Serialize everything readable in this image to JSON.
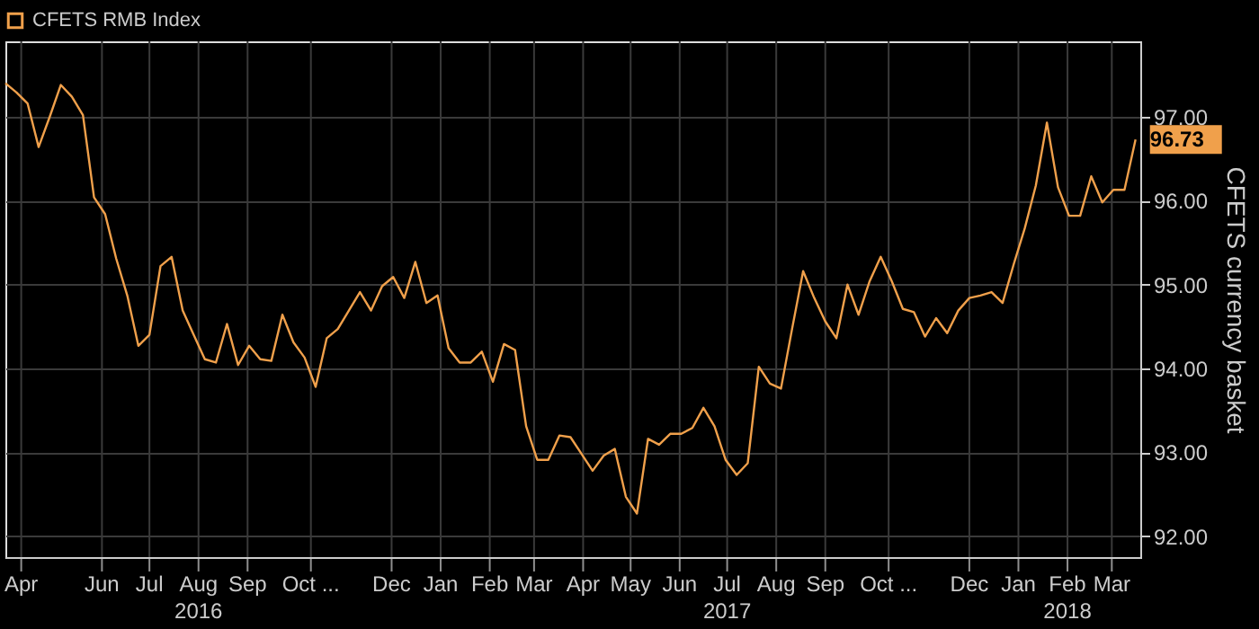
{
  "chart_data": {
    "type": "line",
    "ylabel": "CFETS currency basket",
    "x": [
      "2016-04-15",
      "2016-04-22",
      "2016-04-29",
      "2016-05-06",
      "2016-05-13",
      "2016-05-20",
      "2016-05-27",
      "2016-06-03",
      "2016-06-10",
      "2016-06-17",
      "2016-06-24",
      "2016-07-01",
      "2016-07-08",
      "2016-07-15",
      "2016-07-22",
      "2016-07-29",
      "2016-08-05",
      "2016-08-12",
      "2016-08-19",
      "2016-08-26",
      "2016-09-02",
      "2016-09-09",
      "2016-09-16",
      "2016-09-23",
      "2016-09-30",
      "2016-10-07",
      "2016-10-14",
      "2016-10-21",
      "2016-10-28",
      "2016-11-04",
      "2016-11-11",
      "2016-11-18",
      "2016-11-25",
      "2016-12-02",
      "2016-12-09",
      "2016-12-16",
      "2016-12-23",
      "2016-12-30",
      "2017-01-06",
      "2017-01-13",
      "2017-01-20",
      "2017-01-27",
      "2017-02-03",
      "2017-02-10",
      "2017-02-17",
      "2017-02-24",
      "2017-03-03",
      "2017-03-10",
      "2017-03-17",
      "2017-03-24",
      "2017-03-31",
      "2017-04-07",
      "2017-04-14",
      "2017-04-21",
      "2017-04-28",
      "2017-05-05",
      "2017-05-12",
      "2017-05-19",
      "2017-05-26",
      "2017-06-02",
      "2017-06-09",
      "2017-06-16",
      "2017-06-23",
      "2017-06-30",
      "2017-07-07",
      "2017-07-14",
      "2017-07-21",
      "2017-07-28",
      "2017-08-04",
      "2017-08-11",
      "2017-08-18",
      "2017-08-25",
      "2017-09-01",
      "2017-09-08",
      "2017-09-15",
      "2017-09-22",
      "2017-09-29",
      "2017-10-06",
      "2017-10-13",
      "2017-10-20",
      "2017-10-27",
      "2017-11-03",
      "2017-11-10",
      "2017-11-17",
      "2017-11-24",
      "2017-12-01",
      "2017-12-08",
      "2017-12-15",
      "2017-12-22",
      "2017-12-29",
      "2018-01-05",
      "2018-01-12",
      "2018-01-19",
      "2018-01-26",
      "2018-02-02",
      "2018-02-09",
      "2018-02-16",
      "2018-02-23",
      "2018-03-02",
      "2018-03-09",
      "2018-03-16",
      "2018-03-23",
      "2018-03-30"
    ],
    "series": [
      {
        "name": "CFETS RMB Index",
        "color": "#f0a04b",
        "values": [
          97.4,
          97.29,
          97.16,
          96.64,
          97.0,
          97.38,
          97.24,
          97.02,
          96.04,
          95.84,
          95.31,
          94.87,
          94.27,
          94.4,
          95.22,
          95.33,
          94.69,
          94.4,
          94.11,
          94.07,
          94.53,
          94.04,
          94.27,
          94.11,
          94.09,
          94.64,
          94.31,
          94.13,
          93.78,
          94.36,
          94.47,
          94.69,
          94.91,
          94.69,
          94.98,
          95.09,
          94.84,
          95.27,
          94.78,
          94.87,
          94.24,
          94.07,
          94.07,
          94.2,
          93.84,
          94.29,
          94.22,
          93.31,
          92.91,
          92.91,
          93.2,
          93.18,
          92.98,
          92.78,
          92.96,
          93.04,
          92.47,
          92.27,
          93.16,
          93.09,
          93.22,
          93.22,
          93.29,
          93.53,
          93.31,
          92.91,
          92.73,
          92.87,
          94.02,
          93.82,
          93.76,
          94.47,
          95.16,
          94.84,
          94.56,
          94.36,
          95.0,
          94.64,
          95.04,
          95.33,
          95.04,
          94.71,
          94.67,
          94.38,
          94.6,
          94.42,
          94.69,
          94.84,
          94.87,
          94.91,
          94.78,
          95.24,
          95.67,
          96.18,
          96.93,
          96.16,
          95.82,
          95.82,
          96.29,
          95.98,
          96.13,
          96.13,
          96.73
        ]
      }
    ],
    "xlim": [
      "2016-04-15",
      "2018-04-02"
    ],
    "xticks": [
      {
        "value": "2016-04-25",
        "label": "Apr"
      },
      {
        "value": "2016-06-15",
        "label": "Jun"
      },
      {
        "value": "2016-07-15",
        "label": "Jul"
      },
      {
        "value": "2016-08-15",
        "label": "Aug\n2016"
      },
      {
        "value": "2016-09-15",
        "label": "Sep"
      },
      {
        "value": "2016-10-25",
        "label": "Oct ..."
      },
      {
        "value": "2016-12-15",
        "label": "Dec"
      },
      {
        "value": "2017-01-15",
        "label": "Jan"
      },
      {
        "value": "2017-02-15",
        "label": "Feb"
      },
      {
        "value": "2017-03-15",
        "label": "Mar"
      },
      {
        "value": "2017-04-15",
        "label": "Apr"
      },
      {
        "value": "2017-05-15",
        "label": "May"
      },
      {
        "value": "2017-06-15",
        "label": "Jun"
      },
      {
        "value": "2017-07-15",
        "label": "Jul\n2017"
      },
      {
        "value": "2017-08-15",
        "label": "Aug"
      },
      {
        "value": "2017-09-15",
        "label": "Sep"
      },
      {
        "value": "2017-10-25",
        "label": "Oct ..."
      },
      {
        "value": "2017-12-15",
        "label": "Dec"
      },
      {
        "value": "2018-01-15",
        "label": "Jan"
      },
      {
        "value": "2018-02-15",
        "label": "Feb\n2018"
      },
      {
        "value": "2018-03-15",
        "label": "Mar"
      }
    ],
    "ylim": [
      91.75,
      97.9
    ],
    "yticks": [
      {
        "value": 92,
        "label": "92.00"
      },
      {
        "value": 93,
        "label": "93.00"
      },
      {
        "value": 94,
        "label": "94.00"
      },
      {
        "value": 95,
        "label": "95.00"
      },
      {
        "value": 96,
        "label": "96.00"
      },
      {
        "value": 97,
        "label": "97.00"
      }
    ],
    "annotations": [
      {
        "text": "96.73",
        "x": "2018-03-30",
        "y": 96.73
      }
    ],
    "grid": true,
    "legend": "top left",
    "marker": "none",
    "line_style": "solid"
  }
}
